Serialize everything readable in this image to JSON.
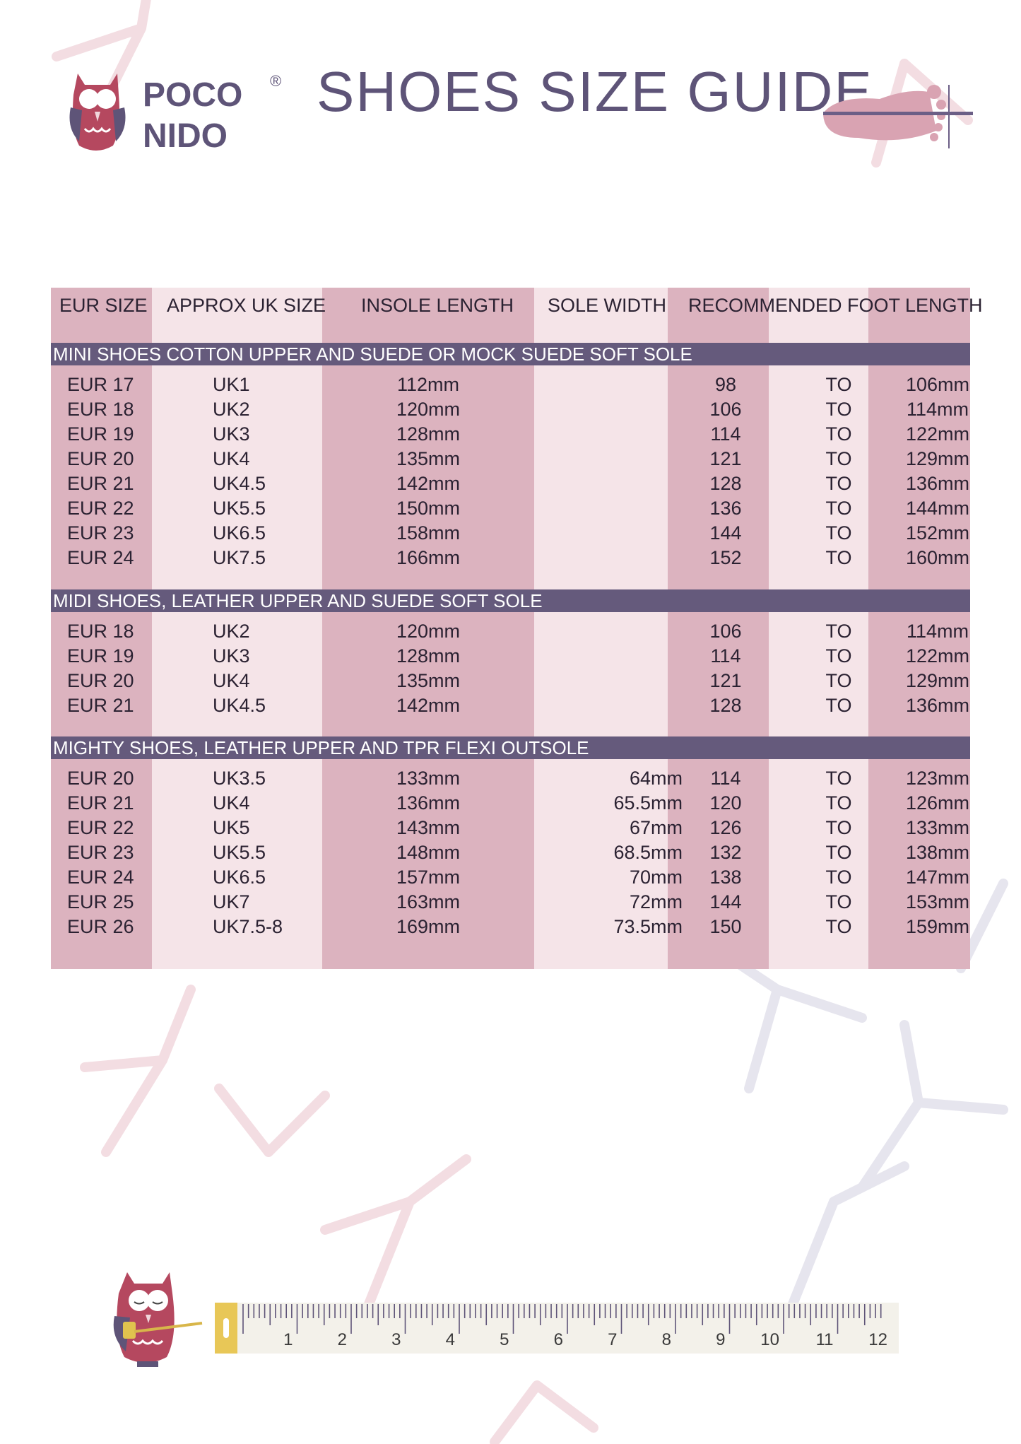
{
  "brand": {
    "name_line1": "POCO",
    "name_line2": "NIDO",
    "registered": "®"
  },
  "title": "SHOES SIZE GUIDE",
  "colors": {
    "dark_stripe": "#dcb3bf",
    "light_stripe": "#f5e4e8",
    "section_bar": "#655a7c",
    "title": "#5e5478",
    "owl": "#b5485f"
  },
  "table": {
    "headers": [
      "EUR SIZE",
      "APPROX UK SIZE",
      "INSOLE LENGTH",
      "SOLE WIDTH",
      "RECOMMENDED FOOT LENGTH"
    ],
    "sections": [
      {
        "title": "MINI SHOES COTTON UPPER AND SUEDE OR MOCK SUEDE SOFT SOLE",
        "rows": [
          [
            "EUR 17",
            "UK1",
            "112mm",
            "",
            "98",
            "TO",
            "106mm"
          ],
          [
            "EUR 18",
            "UK2",
            "120mm",
            "",
            "106",
            "TO",
            "114mm"
          ],
          [
            "EUR 19",
            "UK3",
            "128mm",
            "",
            "114",
            "TO",
            "122mm"
          ],
          [
            "EUR 20",
            "UK4",
            "135mm",
            "",
            "121",
            "TO",
            "129mm"
          ],
          [
            "EUR 21",
            "UK4.5",
            "142mm",
            "",
            "128",
            "TO",
            "136mm"
          ],
          [
            "EUR 22",
            "UK5.5",
            "150mm",
            "",
            "136",
            "TO",
            "144mm"
          ],
          [
            "EUR 23",
            "UK6.5",
            "158mm",
            "",
            "144",
            "TO",
            "152mm"
          ],
          [
            "EUR 24",
            "UK7.5",
            "166mm",
            "",
            "152",
            "TO",
            "160mm"
          ]
        ]
      },
      {
        "title": "MIDI SHOES, LEATHER UPPER AND SUEDE SOFT SOLE",
        "rows": [
          [
            "EUR 18",
            "UK2",
            "120mm",
            "",
            "106",
            "TO",
            "114mm"
          ],
          [
            "EUR 19",
            "UK3",
            "128mm",
            "",
            "114",
            "TO",
            "122mm"
          ],
          [
            "EUR 20",
            "UK4",
            "135mm",
            "",
            "121",
            "TO",
            "129mm"
          ],
          [
            "EUR 21",
            "UK4.5",
            "142mm",
            "",
            "128",
            "TO",
            "136mm"
          ]
        ]
      },
      {
        "title": "MIGHTY SHOES, LEATHER UPPER AND TPR FLEXI OUTSOLE",
        "rows": [
          [
            "EUR 20",
            "UK3.5",
            "133mm",
            "64mm",
            "114",
            "TO",
            "123mm"
          ],
          [
            "EUR 21",
            "UK4",
            "136mm",
            "65.5mm",
            "120",
            "TO",
            "126mm"
          ],
          [
            "EUR 22",
            "UK5",
            "143mm",
            "67mm",
            "126",
            "TO",
            "133mm"
          ],
          [
            "EUR 23",
            "UK5.5",
            "148mm",
            "68.5mm",
            "132",
            "TO",
            "138mm"
          ],
          [
            "EUR 24",
            "UK6.5",
            "157mm",
            "70mm",
            "138",
            "TO",
            "147mm"
          ],
          [
            "EUR 25",
            "UK7",
            "163mm",
            "72mm",
            "144",
            "TO",
            "153mm"
          ],
          [
            "EUR 26",
            "UK7.5-8",
            "169mm",
            "73.5mm",
            "150",
            "TO",
            "159mm"
          ]
        ]
      }
    ]
  },
  "tape_measure": {
    "numbers": [
      "1",
      "2",
      "3",
      "4",
      "5",
      "6",
      "7",
      "8",
      "9",
      "10",
      "11",
      "12"
    ]
  },
  "icons": {
    "logo": "owl-icon",
    "foot": "foot-ruler-icon",
    "bottom": "owl-with-tape-icon"
  }
}
